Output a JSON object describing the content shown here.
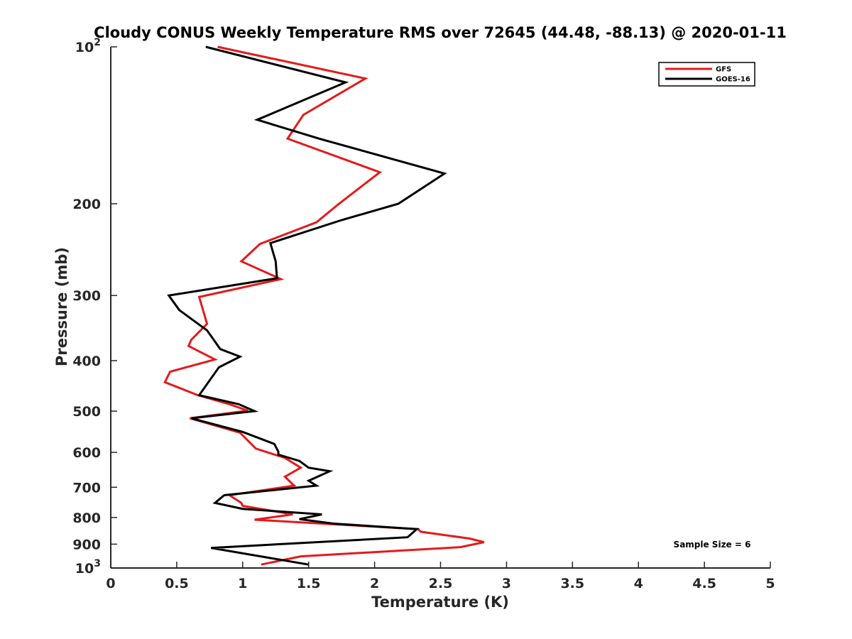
{
  "chart_data": {
    "type": "line",
    "title": "Cloudy CONUS Weekly Temperature RMS over 72645 (44.48, -88.13) @ 2020-01-11",
    "xlabel": "Temperature (K)",
    "ylabel": "Pressure (mb)",
    "xlim": [
      0,
      5
    ],
    "ylim": [
      100,
      1000
    ],
    "yscale": "log",
    "y_reversed": true,
    "grid": false,
    "legend_position": "top-right",
    "x_ticks": [
      "0",
      "0.5",
      "1",
      "1.5",
      "2",
      "2.5",
      "3",
      "3.5",
      "4",
      "4.5",
      "5"
    ],
    "y_ticks": [
      {
        "value": 100,
        "label": "10",
        "sup": "2"
      },
      {
        "value": 200,
        "label": "200",
        "sup": ""
      },
      {
        "value": 300,
        "label": "300",
        "sup": ""
      },
      {
        "value": 400,
        "label": "400",
        "sup": ""
      },
      {
        "value": 500,
        "label": "500",
        "sup": ""
      },
      {
        "value": 600,
        "label": "600",
        "sup": ""
      },
      {
        "value": 700,
        "label": "700",
        "sup": ""
      },
      {
        "value": 800,
        "label": "800",
        "sup": ""
      },
      {
        "value": 900,
        "label": "900",
        "sup": ""
      },
      {
        "value": 1000,
        "label": "10",
        "sup": "3"
      }
    ],
    "annotation": "Sample Size = 6",
    "series": [
      {
        "name": "GFS",
        "color": "#e41a1c",
        "points": [
          [
            0.81,
            100
          ],
          [
            1.93,
            115
          ],
          [
            1.46,
            135
          ],
          [
            1.34,
            150
          ],
          [
            2.04,
            174
          ],
          [
            1.73,
            200
          ],
          [
            1.56,
            217
          ],
          [
            1.13,
            239
          ],
          [
            0.99,
            258
          ],
          [
            1.29,
            279
          ],
          [
            0.67,
            302
          ],
          [
            0.73,
            340
          ],
          [
            0.61,
            365
          ],
          [
            0.59,
            375
          ],
          [
            0.79,
            398
          ],
          [
            0.45,
            420
          ],
          [
            0.41,
            440
          ],
          [
            0.66,
            466
          ],
          [
            0.9,
            485
          ],
          [
            1.04,
            499
          ],
          [
            0.6,
            516
          ],
          [
            0.98,
            550
          ],
          [
            1.1,
            590
          ],
          [
            1.32,
            615
          ],
          [
            1.44,
            642
          ],
          [
            1.32,
            668
          ],
          [
            1.39,
            695
          ],
          [
            0.9,
            725
          ],
          [
            0.99,
            750
          ],
          [
            1.0,
            760
          ],
          [
            1.38,
            789
          ],
          [
            1.09,
            808
          ],
          [
            2.33,
            842
          ],
          [
            2.35,
            852
          ],
          [
            2.72,
            878
          ],
          [
            2.83,
            892
          ],
          [
            2.65,
            912
          ],
          [
            1.44,
            950
          ],
          [
            1.14,
            985
          ]
        ]
      },
      {
        "name": "GOES-16",
        "color": "#000000",
        "points": [
          [
            0.72,
            100
          ],
          [
            1.78,
            117
          ],
          [
            1.11,
            138
          ],
          [
            1.58,
            150
          ],
          [
            2.53,
            175
          ],
          [
            2.18,
            200
          ],
          [
            1.75,
            215
          ],
          [
            1.21,
            238
          ],
          [
            1.25,
            258
          ],
          [
            1.26,
            278
          ],
          [
            0.44,
            300
          ],
          [
            0.52,
            320
          ],
          [
            0.73,
            350
          ],
          [
            0.83,
            380
          ],
          [
            0.98,
            393
          ],
          [
            0.82,
            412
          ],
          [
            0.67,
            466
          ],
          [
            0.97,
            485
          ],
          [
            1.09,
            500
          ],
          [
            0.61,
            516
          ],
          [
            1.0,
            548
          ],
          [
            1.24,
            578
          ],
          [
            1.27,
            598
          ],
          [
            1.27,
            606
          ],
          [
            1.43,
            623
          ],
          [
            1.5,
            642
          ],
          [
            1.66,
            652
          ],
          [
            1.5,
            680
          ],
          [
            1.56,
            695
          ],
          [
            0.86,
            725
          ],
          [
            0.79,
            750
          ],
          [
            1.0,
            770
          ],
          [
            1.6,
            789
          ],
          [
            1.43,
            806
          ],
          [
            1.69,
            822
          ],
          [
            2.32,
            842
          ],
          [
            2.25,
            873
          ],
          [
            0.76,
            915
          ],
          [
            1.5,
            985
          ]
        ]
      }
    ]
  }
}
